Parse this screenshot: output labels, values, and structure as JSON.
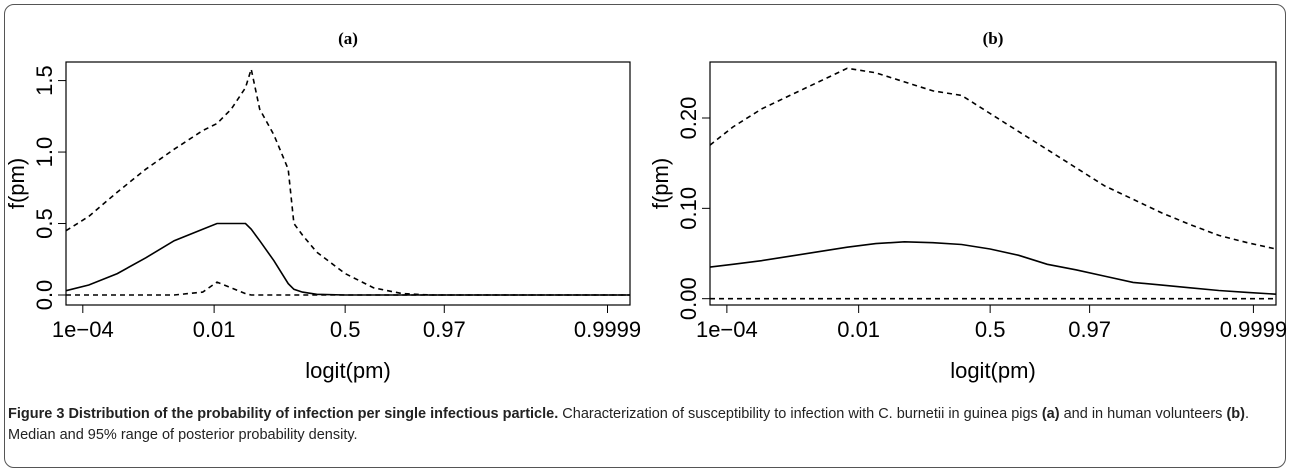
{
  "chart_data": [
    {
      "type": "line",
      "title": "(a)",
      "xlabel": "logit(pm)",
      "ylabel": "f(pm)",
      "x": [
        -9.8,
        -9,
        -8,
        -7,
        -6,
        -5,
        -4.5,
        -4,
        -3.5,
        -3.3,
        -3,
        -2.5,
        -2,
        -1.8,
        -1.5,
        -1,
        0,
        1,
        2,
        3,
        5,
        7,
        10
      ],
      "series": [
        {
          "color": "#000000",
          "line_style": "dashed",
          "values": [
            0.45,
            0.55,
            0.72,
            0.88,
            1.02,
            1.15,
            1.2,
            1.3,
            1.45,
            1.58,
            1.3,
            1.12,
            0.88,
            0.5,
            0.42,
            0.3,
            0.15,
            0.05,
            0.01,
            0,
            0,
            0,
            0
          ]
        },
        {
          "color": "#000000",
          "line_style": "solid",
          "values": [
            0.03,
            0.07,
            0.15,
            0.26,
            0.38,
            0.46,
            0.5,
            0.5,
            0.5,
            0.46,
            0.38,
            0.24,
            0.08,
            0.04,
            0.02,
            0.005,
            0,
            0,
            0,
            0,
            0,
            0,
            0
          ]
        },
        {
          "color": "#000000",
          "line_style": "dashed",
          "values": [
            0,
            0,
            0,
            0,
            0,
            0.02,
            0.09,
            0.05,
            0.01,
            0,
            0,
            0,
            0,
            0,
            0,
            0,
            0,
            0,
            0,
            0,
            0,
            0,
            0
          ]
        }
      ],
      "xlim": [
        -9.8,
        10
      ],
      "xticks": [
        {
          "value": -9.21,
          "label": "1e−04"
        },
        {
          "value": -4.6,
          "label": "0.01"
        },
        {
          "value": 0,
          "label": "0.5"
        },
        {
          "value": 3.48,
          "label": "0.97"
        },
        {
          "value": 9.21,
          "label": "0.9999"
        }
      ],
      "ylim": [
        -0.07,
        1.63
      ],
      "yticks": [
        {
          "value": 0,
          "label": "0.0"
        },
        {
          "value": 0.5,
          "label": "0.5"
        },
        {
          "value": 1,
          "label": "1.0"
        },
        1.5
      ]
    },
    {
      "type": "line",
      "title": "(b)",
      "xlabel": "logit(pm)",
      "ylabel": "f(pm)",
      "x": [
        -9.8,
        -9,
        -8,
        -7,
        -6,
        -5,
        -4,
        -3,
        -2,
        -1,
        0,
        1,
        2,
        3,
        4,
        5,
        6,
        7,
        8,
        9,
        10
      ],
      "series": [
        {
          "color": "#000000",
          "line_style": "dashed",
          "values": [
            0.17,
            0.19,
            0.21,
            0.225,
            0.24,
            0.255,
            0.25,
            0.24,
            0.23,
            0.225,
            0.205,
            0.185,
            0.165,
            0.145,
            0.125,
            0.11,
            0.095,
            0.082,
            0.07,
            0.062,
            0.055
          ]
        },
        {
          "color": "#000000",
          "line_style": "solid",
          "values": [
            0.035,
            0.038,
            0.042,
            0.047,
            0.052,
            0.057,
            0.061,
            0.063,
            0.062,
            0.06,
            0.055,
            0.048,
            0.038,
            0.032,
            0.025,
            0.018,
            0.015,
            0.012,
            0.009,
            0.007,
            0.005
          ]
        },
        {
          "color": "#000000",
          "line_style": "dashed",
          "values": [
            0,
            0,
            0,
            0,
            0,
            0,
            0,
            0,
            0,
            0,
            0,
            0,
            0,
            0,
            0,
            0,
            0,
            0,
            0,
            0,
            0
          ]
        }
      ],
      "xlim": [
        -9.8,
        10
      ],
      "xticks": [
        {
          "value": -9.21,
          "label": "1e−04"
        },
        {
          "value": -4.6,
          "label": "0.01"
        },
        {
          "value": 0,
          "label": "0.5"
        },
        {
          "value": 3.48,
          "label": "0.97"
        },
        {
          "value": 9.21,
          "label": "0.9999"
        }
      ],
      "ylim": [
        -0.007,
        0.262
      ],
      "yticks": [
        {
          "value": 0,
          "label": "0.00"
        },
        {
          "value": 0.1,
          "label": "0.10"
        },
        {
          "value": 0.2,
          "label": "0.20"
        }
      ]
    }
  ],
  "caption": {
    "label": "Figure 3",
    "title": "Distribution of the probability of infection per single infectious particle.",
    "text": [
      "Characterization of susceptibility to infection with C. burnetii in guinea pigs ",
      "(a)",
      " and in human volunteers ",
      "(b)",
      ". Median and 95% range of posterior probability density."
    ]
  }
}
